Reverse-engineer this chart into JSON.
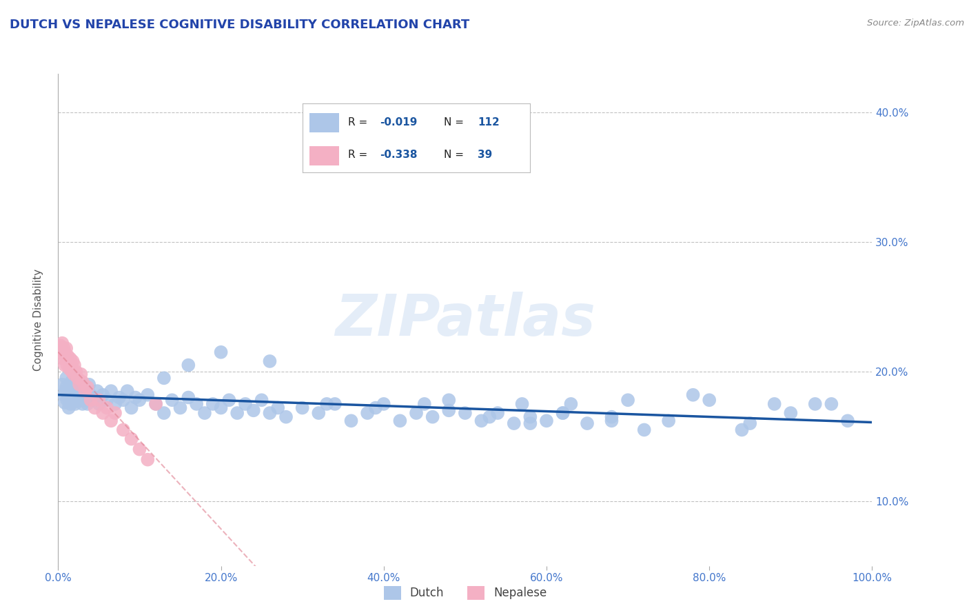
{
  "title": "DUTCH VS NEPALESE COGNITIVE DISABILITY CORRELATION CHART",
  "source": "Source: ZipAtlas.com",
  "ylabel": "Cognitive Disability",
  "xlim": [
    0.0,
    1.0
  ],
  "ylim": [
    0.05,
    0.43
  ],
  "yticks": [
    0.1,
    0.2,
    0.3,
    0.4
  ],
  "xticks": [
    0.0,
    0.2,
    0.4,
    0.6,
    0.8,
    1.0
  ],
  "dutch_R": -0.019,
  "dutch_N": 112,
  "nepalese_R": -0.338,
  "nepalese_N": 39,
  "dutch_color": "#adc6e8",
  "dutch_line_color": "#1a55a0",
  "nepalese_color": "#f4b0c4",
  "nepalese_line_color": "#e08090",
  "background_color": "#ffffff",
  "grid_color": "#bbbbbb",
  "title_color": "#2244aa",
  "axis_tick_color": "#4477cc",
  "watermark": "ZIPatlas",
  "dutch_x": [
    0.005,
    0.007,
    0.008,
    0.009,
    0.01,
    0.01,
    0.011,
    0.012,
    0.013,
    0.013,
    0.015,
    0.015,
    0.016,
    0.017,
    0.018,
    0.018,
    0.019,
    0.02,
    0.02,
    0.021,
    0.022,
    0.023,
    0.024,
    0.025,
    0.026,
    0.027,
    0.028,
    0.029,
    0.03,
    0.03,
    0.032,
    0.034,
    0.036,
    0.038,
    0.04,
    0.042,
    0.045,
    0.048,
    0.05,
    0.055,
    0.06,
    0.065,
    0.07,
    0.075,
    0.08,
    0.085,
    0.09,
    0.095,
    0.1,
    0.11,
    0.12,
    0.13,
    0.14,
    0.15,
    0.16,
    0.17,
    0.18,
    0.19,
    0.2,
    0.21,
    0.22,
    0.23,
    0.24,
    0.25,
    0.26,
    0.27,
    0.28,
    0.3,
    0.32,
    0.34,
    0.36,
    0.38,
    0.4,
    0.42,
    0.44,
    0.46,
    0.48,
    0.5,
    0.52,
    0.54,
    0.56,
    0.58,
    0.6,
    0.62,
    0.65,
    0.68,
    0.7,
    0.75,
    0.8,
    0.85,
    0.9,
    0.95,
    0.97,
    0.57,
    0.63,
    0.68,
    0.72,
    0.78,
    0.84,
    0.88,
    0.93,
    0.2,
    0.13,
    0.16,
    0.26,
    0.33,
    0.39,
    0.45,
    0.48,
    0.53,
    0.58,
    0.62
  ],
  "dutch_y": [
    0.19,
    0.182,
    0.176,
    0.185,
    0.188,
    0.195,
    0.178,
    0.185,
    0.18,
    0.172,
    0.188,
    0.175,
    0.192,
    0.182,
    0.176,
    0.188,
    0.178,
    0.182,
    0.195,
    0.175,
    0.188,
    0.18,
    0.178,
    0.19,
    0.182,
    0.185,
    0.178,
    0.188,
    0.182,
    0.175,
    0.178,
    0.185,
    0.175,
    0.19,
    0.182,
    0.178,
    0.18,
    0.185,
    0.175,
    0.182,
    0.178,
    0.185,
    0.175,
    0.18,
    0.178,
    0.185,
    0.172,
    0.18,
    0.178,
    0.182,
    0.175,
    0.168,
    0.178,
    0.172,
    0.18,
    0.175,
    0.168,
    0.175,
    0.172,
    0.178,
    0.168,
    0.175,
    0.17,
    0.178,
    0.168,
    0.172,
    0.165,
    0.172,
    0.168,
    0.175,
    0.162,
    0.168,
    0.175,
    0.162,
    0.168,
    0.165,
    0.17,
    0.168,
    0.162,
    0.168,
    0.16,
    0.165,
    0.162,
    0.168,
    0.16,
    0.165,
    0.178,
    0.162,
    0.178,
    0.16,
    0.168,
    0.175,
    0.162,
    0.175,
    0.175,
    0.162,
    0.155,
    0.182,
    0.155,
    0.175,
    0.175,
    0.215,
    0.195,
    0.205,
    0.208,
    0.175,
    0.172,
    0.175,
    0.178,
    0.165,
    0.16,
    0.168
  ],
  "nepalese_x": [
    0.002,
    0.003,
    0.004,
    0.005,
    0.006,
    0.007,
    0.008,
    0.008,
    0.009,
    0.01,
    0.011,
    0.012,
    0.013,
    0.014,
    0.015,
    0.016,
    0.017,
    0.018,
    0.019,
    0.02,
    0.022,
    0.024,
    0.026,
    0.028,
    0.03,
    0.033,
    0.036,
    0.04,
    0.045,
    0.05,
    0.055,
    0.06,
    0.065,
    0.07,
    0.08,
    0.09,
    0.1,
    0.11,
    0.12
  ],
  "nepalese_y": [
    0.218,
    0.22,
    0.215,
    0.222,
    0.21,
    0.218,
    0.205,
    0.215,
    0.21,
    0.218,
    0.205,
    0.212,
    0.208,
    0.202,
    0.21,
    0.205,
    0.2,
    0.208,
    0.198,
    0.205,
    0.2,
    0.195,
    0.19,
    0.198,
    0.192,
    0.185,
    0.188,
    0.178,
    0.172,
    0.178,
    0.168,
    0.172,
    0.162,
    0.168,
    0.155,
    0.148,
    0.14,
    0.132,
    0.175
  ],
  "legend_dutch_label": "Dutch",
  "legend_nepalese_label": "Nepalese"
}
